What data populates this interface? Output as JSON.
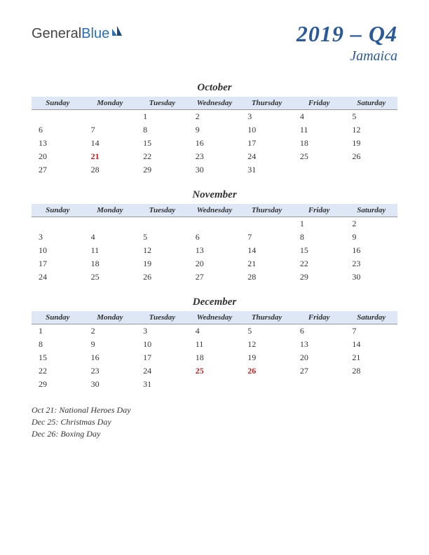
{
  "logo": {
    "part1": "General",
    "part2": "Blue"
  },
  "title": "2019 – Q4",
  "subtitle": "Jamaica",
  "dayHeaders": [
    "Sunday",
    "Monday",
    "Tuesday",
    "Wednesday",
    "Thursday",
    "Friday",
    "Saturday"
  ],
  "colors": {
    "header_bg": "#dde7f5",
    "title_color": "#2a5a9a",
    "holiday_color": "#c41e1e",
    "text_color": "#333333",
    "background": "#ffffff"
  },
  "months": [
    {
      "name": "October",
      "weeks": [
        [
          "",
          "",
          "1",
          "2",
          "3",
          "4",
          "5"
        ],
        [
          "6",
          "7",
          "8",
          "9",
          "10",
          "11",
          "12"
        ],
        [
          "13",
          "14",
          "15",
          "16",
          "17",
          "18",
          "19"
        ],
        [
          "20",
          "21",
          "22",
          "23",
          "24",
          "25",
          "26"
        ],
        [
          "27",
          "28",
          "29",
          "30",
          "31",
          "",
          ""
        ]
      ],
      "holidays": [
        [
          3,
          1
        ]
      ]
    },
    {
      "name": "November",
      "weeks": [
        [
          "",
          "",
          "",
          "",
          "",
          "1",
          "2"
        ],
        [
          "3",
          "4",
          "5",
          "6",
          "7",
          "8",
          "9"
        ],
        [
          "10",
          "11",
          "12",
          "13",
          "14",
          "15",
          "16"
        ],
        [
          "17",
          "18",
          "19",
          "20",
          "21",
          "22",
          "23"
        ],
        [
          "24",
          "25",
          "26",
          "27",
          "28",
          "29",
          "30"
        ]
      ],
      "holidays": []
    },
    {
      "name": "December",
      "weeks": [
        [
          "1",
          "2",
          "3",
          "4",
          "5",
          "6",
          "7"
        ],
        [
          "8",
          "9",
          "10",
          "11",
          "12",
          "13",
          "14"
        ],
        [
          "15",
          "16",
          "17",
          "18",
          "19",
          "20",
          "21"
        ],
        [
          "22",
          "23",
          "24",
          "25",
          "26",
          "27",
          "28"
        ],
        [
          "29",
          "30",
          "31",
          "",
          "",
          "",
          ""
        ]
      ],
      "holidays": [
        [
          3,
          3
        ],
        [
          3,
          4
        ]
      ]
    }
  ],
  "holidayList": [
    "Oct 21: National Heroes Day",
    "Dec 25: Christmas Day",
    "Dec 26: Boxing Day"
  ]
}
